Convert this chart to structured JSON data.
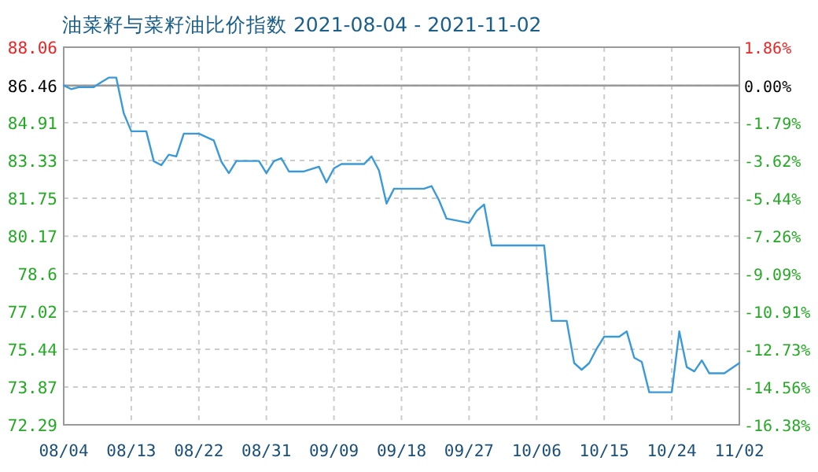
{
  "chart_data": {
    "type": "line",
    "title": "油菜籽与菜籽油比价指数 2021-08-04 - 2021-11-02",
    "x": [
      "2021-08-04",
      "2021-08-05",
      "2021-08-06",
      "2021-08-08",
      "2021-08-09",
      "2021-08-10",
      "2021-08-11",
      "2021-08-12",
      "2021-08-13",
      "2021-08-15",
      "2021-08-16",
      "2021-08-17",
      "2021-08-18",
      "2021-08-19",
      "2021-08-20",
      "2021-08-22",
      "2021-08-24",
      "2021-08-25",
      "2021-08-26",
      "2021-08-27",
      "2021-08-30",
      "2021-08-31",
      "2021-09-01",
      "2021-09-02",
      "2021-09-03",
      "2021-09-05",
      "2021-09-07",
      "2021-09-08",
      "2021-09-09",
      "2021-09-10",
      "2021-09-13",
      "2021-09-14",
      "2021-09-15",
      "2021-09-16",
      "2021-09-17",
      "2021-09-21",
      "2021-09-22",
      "2021-09-23",
      "2021-09-24",
      "2021-09-27",
      "2021-09-28",
      "2021-09-29",
      "2021-09-30",
      "2021-10-07",
      "2021-10-08",
      "2021-10-10",
      "2021-10-11",
      "2021-10-12",
      "2021-10-13",
      "2021-10-14",
      "2021-10-15",
      "2021-10-17",
      "2021-10-18",
      "2021-10-19",
      "2021-10-20",
      "2021-10-21",
      "2021-10-24",
      "2021-10-25",
      "2021-10-26",
      "2021-10-27",
      "2021-10-28",
      "2021-10-29",
      "2021-10-31",
      "2021-11-02"
    ],
    "series": [
      {
        "color": "#3a9ad9",
        "values": [
          86.46,
          86.31,
          86.39,
          86.39,
          86.6,
          86.79,
          86.79,
          85.3,
          84.55,
          84.55,
          83.3,
          83.13,
          83.57,
          83.5,
          84.45,
          84.45,
          84.16,
          83.28,
          82.8,
          83.31,
          83.31,
          82.8,
          83.3,
          83.42,
          82.87,
          82.87,
          83.07,
          82.41,
          83.0,
          83.18,
          83.18,
          83.5,
          82.91,
          81.53,
          82.15,
          82.15,
          82.26,
          81.66,
          80.9,
          80.72,
          81.22,
          81.49,
          79.78,
          79.78,
          76.63,
          76.63,
          74.87,
          74.59,
          74.87,
          75.47,
          75.97,
          75.97,
          76.19,
          75.09,
          74.92,
          73.65,
          73.65,
          76.19,
          74.7,
          74.52,
          74.98,
          74.44,
          74.44,
          74.87
        ]
      }
    ],
    "xlim": [
      "2021-08-04",
      "2021-11-02"
    ],
    "xticks": [
      {
        "value": "2021-08-04",
        "label": "08/04"
      },
      {
        "value": "2021-08-13",
        "label": "08/13"
      },
      {
        "value": "2021-08-22",
        "label": "08/22"
      },
      {
        "value": "2021-08-31",
        "label": "08/31"
      },
      {
        "value": "2021-09-09",
        "label": "09/09"
      },
      {
        "value": "2021-09-18",
        "label": "09/18"
      },
      {
        "value": "2021-09-27",
        "label": "09/27"
      },
      {
        "value": "2021-10-06",
        "label": "10/06"
      },
      {
        "value": "2021-10-15",
        "label": "10/15"
      },
      {
        "value": "2021-10-24",
        "label": "10/24"
      },
      {
        "value": "2021-11-02",
        "label": "11/02"
      }
    ],
    "ylim": [
      72.29,
      88.06
    ],
    "yticks": [
      72.29,
      73.87,
      75.44,
      77.02,
      78.6,
      80.17,
      81.75,
      83.33,
      84.91,
      86.46,
      88.06
    ],
    "y2lim": [
      -16.38,
      1.86
    ],
    "y2ticks": [
      {
        "value": -16.38,
        "label": "-16.38%"
      },
      {
        "value": -14.56,
        "label": "-14.56%"
      },
      {
        "value": -12.73,
        "label": "-12.73%"
      },
      {
        "value": -10.91,
        "label": "-10.91%"
      },
      {
        "value": -9.09,
        "label": "-9.09%"
      },
      {
        "value": -7.26,
        "label": "-7.26%"
      },
      {
        "value": -5.44,
        "label": "-5.44%"
      },
      {
        "value": -3.62,
        "label": "-3.62%"
      },
      {
        "value": -1.79,
        "label": "-1.79%"
      },
      {
        "value": 0,
        "label": "0.00%"
      },
      {
        "value": 1.86,
        "label": "1.86%"
      }
    ],
    "ref_lines": [
      {
        "axis": "y",
        "value": 86.46,
        "color": "#999999"
      }
    ],
    "grid": true,
    "marker": "none",
    "line_style": "solid"
  }
}
